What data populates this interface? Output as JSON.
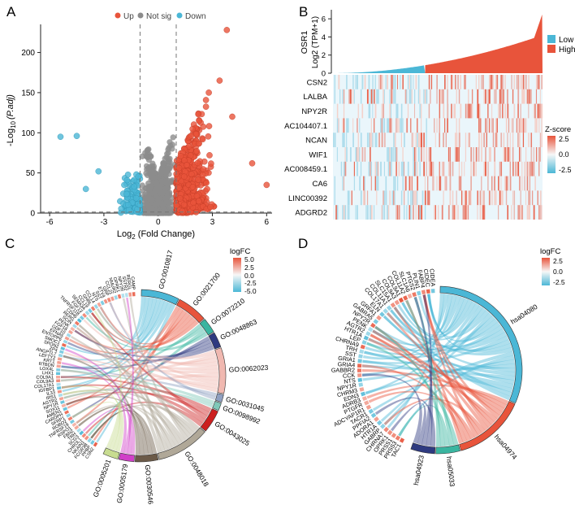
{
  "chart_data": [
    {
      "panel": "A",
      "type": "scatter",
      "title": "",
      "xlabel": "Log2 (Fold Change)",
      "xlabel_main": "Log",
      "xlabel_sub": "2",
      "xlabel_rest": " (Fold Change)",
      "ylabel_prefix": "-Log",
      "ylabel_sub": "10",
      "ylabel_var": "(P.adj)",
      "xlim": [
        -6.5,
        6.3
      ],
      "ylim": [
        0,
        235
      ],
      "xticks": [
        -6,
        -3,
        0,
        3,
        6
      ],
      "xtick_labels": [
        "-6",
        "-3",
        "0",
        "3",
        "6"
      ],
      "yticks": [
        0,
        50,
        100,
        150,
        200
      ],
      "ytick_labels": [
        "0",
        "50",
        "100",
        "150",
        "200"
      ],
      "thresholds": {
        "fc": [
          -1,
          1
        ],
        "padj_log": 1.3
      },
      "legend": [
        {
          "label": "Up",
          "color": "#e8543b"
        },
        {
          "label": "Not sig",
          "color": "#8c8c8c"
        },
        {
          "label": "Down",
          "color": "#4bb7d6"
        }
      ],
      "outliers": [
        {
          "x": 3.8,
          "y": 228,
          "group": "Up"
        },
        {
          "x": 3.4,
          "y": 165,
          "group": "Up"
        },
        {
          "x": 2.8,
          "y": 150,
          "group": "Up"
        },
        {
          "x": 4.1,
          "y": 120,
          "group": "Up"
        },
        {
          "x": 6.0,
          "y": 35,
          "group": "Up"
        },
        {
          "x": 5.2,
          "y": 62,
          "group": "Up"
        },
        {
          "x": -5.4,
          "y": 95,
          "group": "Down"
        },
        {
          "x": -4.5,
          "y": 96,
          "group": "Down"
        },
        {
          "x": -3.3,
          "y": 52,
          "group": "Down"
        },
        {
          "x": -4.0,
          "y": 30,
          "group": "Down"
        }
      ]
    },
    {
      "panel": "B",
      "type": "heatmap",
      "ylabel_gene": "OSR1",
      "ylabel_scale": "Log2 (TPM+1)",
      "bar_yticks": [
        "0",
        "2",
        "4",
        "6"
      ],
      "bar_ymax": 7,
      "low_fraction": 0.44,
      "genes": [
        "CSN2",
        "LALBA",
        "NPY2R",
        "AC104407.1",
        "NCAN",
        "WIF1",
        "AC008459.1",
        "CA6",
        "LINC00392",
        "ADGRD2"
      ],
      "group_legend": [
        {
          "label": "Low",
          "color": "#4bb7d6"
        },
        {
          "label": "High",
          "color": "#e8543b"
        }
      ],
      "zscore_title": "Z-score",
      "zscore_ticks": [
        "2.5",
        "0.0",
        "-2.5"
      ]
    },
    {
      "panel": "C",
      "type": "chord",
      "legend_title": "logFC",
      "legend_ticks": [
        "5.0",
        "2.5",
        "0.0",
        "-2.5",
        "-5.0"
      ],
      "terms": [
        {
          "id": "GO:0010817",
          "color": "#4bb7d6",
          "size": 10
        },
        {
          "id": "GO:0021700",
          "color": "#e8543b",
          "size": 8
        },
        {
          "id": "GO:0072210",
          "color": "#3ab5a0",
          "size": 4
        },
        {
          "id": "GO:0048863",
          "color": "#2e3a80",
          "size": 4
        },
        {
          "id": "GO:0062023",
          "color": "#f0b8b0",
          "size": 12
        },
        {
          "id": "GO:0031045",
          "color": "#8f9fc0",
          "size": 2
        },
        {
          "id": "GO:0098992",
          "color": "#7fc8b8",
          "size": 2
        },
        {
          "id": "GO:0043025",
          "color": "#cc1f1f",
          "size": 6
        },
        {
          "id": "GO:0048018",
          "color": "#b0a898",
          "size": 14
        },
        {
          "id": "GO:0030546",
          "color": "#6b5a48",
          "size": 6
        },
        {
          "id": "GO:0005179",
          "color": "#d040c8",
          "size": 4
        },
        {
          "id": "GO:0005201",
          "color": "#c8dc90",
          "size": 4
        }
      ],
      "genes": [
        "CSN2",
        "PPBP",
        "FCGR3B",
        "NKAIN1",
        "CHRDL1",
        "SCG3",
        "TRH",
        "FBN2",
        "RSPO1",
        "TNFRSF19",
        "ROBO2",
        "SFRP1",
        "CARDPH",
        "AMEN1",
        "SOX11",
        "NPY1R",
        "AGTR2",
        "IRS1",
        "IL33",
        "IGFBP1",
        "COL17A1",
        "COL9A3",
        "COL9A1",
        "LHX1",
        "LOX4L",
        "RTBDN",
        "KRT1",
        "LEFTY2",
        "ANGPTL7",
        "ZP4",
        "SPON2",
        "SMOC1",
        "ENTOPP6",
        "EFNA5",
        "GDF10",
        "FGF18",
        "PENK",
        "SCIN",
        "RERG",
        "CDH6",
        "TNFRSF11B",
        "FGF13",
        "SEMA3A",
        "CCL19",
        "GHRL",
        "CCL14",
        "NTS",
        "SST",
        "ETV4",
        "GRP",
        "CCL21",
        "NMUR2",
        "OPRK1",
        "NPY2R",
        "SSTR2",
        "RERGL",
        "CAMP"
      ]
    },
    {
      "panel": "D",
      "type": "chord",
      "legend_title": "logFC",
      "legend_ticks": [
        "2.5",
        "0.0",
        "-2.5"
      ],
      "terms": [
        {
          "id": "hsa04080",
          "color": "#4bb7d6",
          "size": 40
        },
        {
          "id": "hsa04974",
          "color": "#e8543b",
          "size": 18
        },
        {
          "id": "hsa05033",
          "color": "#3ab5a0",
          "size": 6
        },
        {
          "id": "hsa04923",
          "color": "#2e3a80",
          "size": 6
        }
      ],
      "genes": [
        "TAC1",
        "PRSS3",
        "PRSS1",
        "OPRK1",
        "CHRNA7",
        "GABRP",
        "HTR1A",
        "ADORA1",
        "PPFIA2",
        "TACR1",
        "ADCYAP1R1",
        "PTGFR",
        "ADRB3",
        "EDN3",
        "CHRM3",
        "NPY1R",
        "NTS",
        "CCK",
        "GABBR2",
        "GRIA4",
        "GRIA1",
        "SST",
        "TRH",
        "CHRNA9",
        "LEP",
        "HTR1A",
        "AGTR2",
        "PENK",
        "NPY2R",
        "GABRA5",
        "GRFA1",
        "ELN",
        "COL17A1",
        "COL11A1",
        "SLC15A1",
        "COL9A3",
        "COL9A1",
        "COL11A2",
        "SLC1A6",
        "PTGS2",
        "PLIN1",
        "FABP4",
        "CIDEC",
        "CIDEA"
      ]
    }
  ]
}
